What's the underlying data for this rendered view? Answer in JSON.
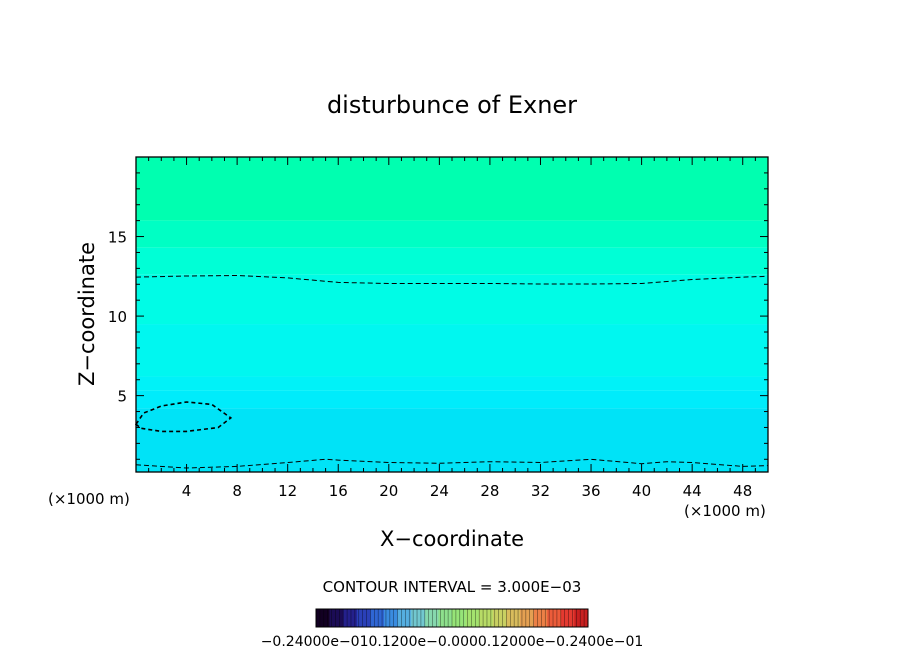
{
  "chart_data": {
    "type": "contour",
    "title": "disturbunce of Exner",
    "xlabel": "X−coordinate",
    "ylabel": "Z−coordinate",
    "x_unit": "(×1000 m)",
    "y_unit": "(×1000 m)",
    "xlim": [
      0,
      50
    ],
    "ylim": [
      0.2,
      20
    ],
    "x_ticks": [
      4,
      8,
      12,
      16,
      20,
      24,
      28,
      32,
      36,
      40,
      44,
      48
    ],
    "y_ticks": [
      5,
      10,
      15
    ],
    "x_tick_labels": [
      "4",
      "8",
      "12",
      "16",
      "20",
      "24",
      "28",
      "32",
      "36",
      "40",
      "44",
      "48"
    ],
    "y_tick_labels": [
      "5",
      "10",
      "15"
    ],
    "contour_interval_text": "CONTOUR INTERVAL = 3.000E−03",
    "colorbar_labels_text": "−0.24000e−010.1200e−0.0000.12000e−0.2400e−01",
    "fill_bands": [
      {
        "z_bottom": 16.0,
        "z_top": 20.0,
        "color": "#00ffb0"
      },
      {
        "z_bottom": 14.3,
        "z_top": 16.0,
        "color": "#00ffc4"
      },
      {
        "z_bottom": 12.6,
        "z_top": 14.3,
        "color": "#00ffd6"
      },
      {
        "z_bottom": 9.5,
        "z_top": 12.6,
        "color": "#00fce6"
      },
      {
        "z_bottom": 6.2,
        "z_top": 9.5,
        "color": "#00f7f0"
      },
      {
        "z_bottom": 5.3,
        "z_top": 6.2,
        "color": "#00f2f8"
      },
      {
        "z_bottom": 4.2,
        "z_top": 5.3,
        "color": "#00ecfb"
      },
      {
        "z_bottom": 0.2,
        "z_top": 4.2,
        "color": "#00e3f7"
      }
    ],
    "contours": [
      {
        "level": "upper",
        "style": "dashed",
        "points": [
          [
            0,
            12.45
          ],
          [
            4,
            12.52
          ],
          [
            8,
            12.55
          ],
          [
            12,
            12.4
          ],
          [
            16,
            12.12
          ],
          [
            20,
            12.05
          ],
          [
            24,
            12.05
          ],
          [
            28,
            12.05
          ],
          [
            32,
            12.02
          ],
          [
            36,
            12.02
          ],
          [
            40,
            12.05
          ],
          [
            44,
            12.3
          ],
          [
            48,
            12.45
          ],
          [
            50,
            12.5
          ]
        ]
      },
      {
        "level": "lower",
        "style": "dashed",
        "points": [
          [
            0,
            0.65
          ],
          [
            4,
            0.45
          ],
          [
            8,
            0.55
          ],
          [
            12,
            0.8
          ],
          [
            15,
            1.0
          ],
          [
            16,
            0.95
          ],
          [
            20,
            0.8
          ],
          [
            24,
            0.75
          ],
          [
            28,
            0.85
          ],
          [
            32,
            0.8
          ],
          [
            36,
            1.0
          ],
          [
            40,
            0.72
          ],
          [
            42,
            0.85
          ],
          [
            44,
            0.8
          ],
          [
            48,
            0.55
          ],
          [
            50,
            0.6
          ]
        ]
      },
      {
        "level": "closed",
        "style": "dashed",
        "closed": true,
        "points": [
          [
            0,
            3.2
          ],
          [
            0.6,
            3.9
          ],
          [
            2,
            4.35
          ],
          [
            4,
            4.6
          ],
          [
            6,
            4.45
          ],
          [
            7.5,
            3.6
          ],
          [
            6.5,
            3.0
          ],
          [
            4,
            2.75
          ],
          [
            2,
            2.75
          ],
          [
            0.4,
            2.95
          ],
          [
            0,
            3.2
          ]
        ]
      }
    ],
    "colorbar_palette": [
      "#120022",
      "#1b0c55",
      "#24208c",
      "#2a40b8",
      "#2f66d4",
      "#3a8ce0",
      "#55aee0",
      "#72c8d0",
      "#86d8ae",
      "#8ee08c",
      "#96e478",
      "#a4e26e",
      "#b8dc66",
      "#c8d062",
      "#d8bc5c",
      "#e4a052",
      "#ec8046",
      "#ec5c3a",
      "#e43a30",
      "#c82020"
    ]
  }
}
